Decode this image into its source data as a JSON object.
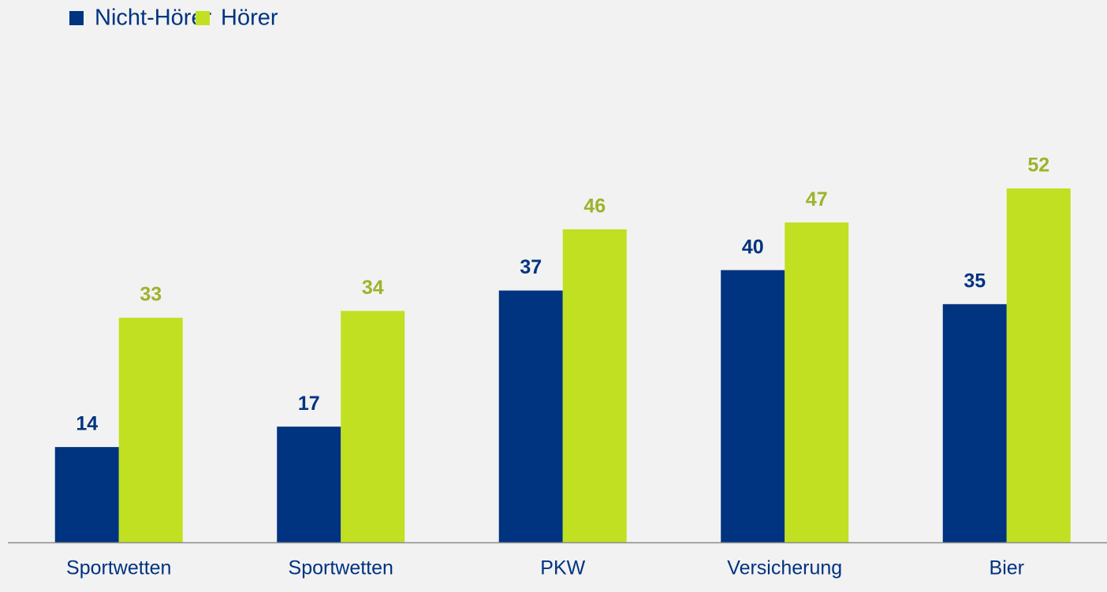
{
  "chart_data": {
    "type": "bar",
    "categories": [
      "Sportwetten",
      "Sportwetten",
      "PKW",
      "Versicherung",
      "Bier"
    ],
    "series": [
      {
        "name": "Nicht-Hörer",
        "color": "#003380",
        "label_color": "#003380",
        "values": [
          14,
          17,
          37,
          40,
          35
        ]
      },
      {
        "name": "Hörer",
        "color": "#c0e021",
        "label_color": "#9fb22a",
        "values": [
          33,
          34,
          46,
          47,
          52
        ]
      }
    ],
    "ylim": [
      0,
      60
    ],
    "grid": false,
    "legend": "top-left"
  }
}
